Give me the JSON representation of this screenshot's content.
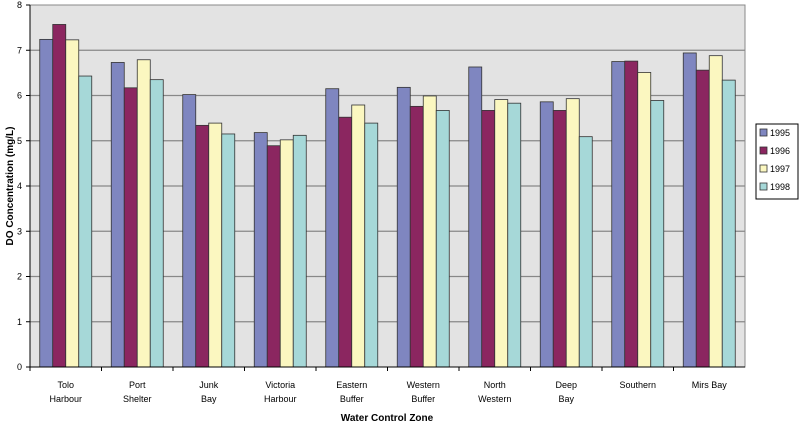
{
  "chart_data": {
    "type": "bar",
    "title": "",
    "xlabel": "Water Control Zone",
    "ylabel": "DO Concentration (mg/L)",
    "ylim": [
      0,
      8
    ],
    "yticks": [
      "0",
      "1",
      "2",
      "3",
      "4",
      "5",
      "6",
      "7",
      "8"
    ],
    "grid": true,
    "legend_placement": "right",
    "categories": [
      [
        "Tolo",
        "Harbour"
      ],
      [
        "Port",
        "Shelter"
      ],
      [
        "Junk",
        "Bay"
      ],
      [
        "Victoria",
        "Harbour"
      ],
      [
        "Eastern",
        "Buffer"
      ],
      [
        "Western",
        "Buffer"
      ],
      [
        "North",
        "Western"
      ],
      [
        "Deep",
        "Bay"
      ],
      [
        "Southern",
        ""
      ],
      [
        "Mirs Bay",
        ""
      ]
    ],
    "series": [
      {
        "name": "1995",
        "color": "#7f86c0",
        "values": [
          7.24,
          6.73,
          6.02,
          5.18,
          6.15,
          6.18,
          6.63,
          5.86,
          6.75,
          6.94
        ]
      },
      {
        "name": "1996",
        "color": "#8b2660",
        "values": [
          7.57,
          6.17,
          5.34,
          4.89,
          5.52,
          5.76,
          5.67,
          5.67,
          6.76,
          6.56
        ]
      },
      {
        "name": "1997",
        "color": "#fbf7c0",
        "values": [
          7.23,
          6.79,
          5.39,
          5.02,
          5.79,
          5.99,
          5.91,
          5.93,
          6.51,
          6.88
        ]
      },
      {
        "name": "1998",
        "color": "#a6d8d8",
        "values": [
          6.43,
          6.35,
          5.15,
          5.12,
          5.39,
          5.67,
          5.83,
          5.09,
          5.89,
          6.34
        ]
      }
    ]
  }
}
